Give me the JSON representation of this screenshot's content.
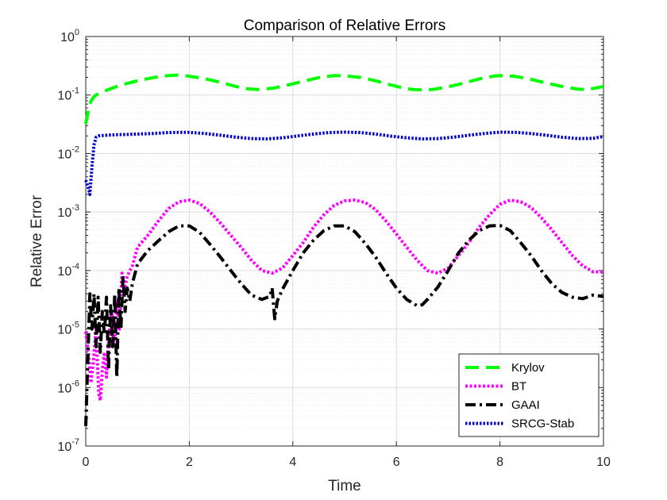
{
  "chart_data": {
    "type": "line",
    "title": "Comparison of Relative Errors",
    "xlabel": "Time",
    "ylabel": "Relative Error",
    "xlim": [
      0,
      10
    ],
    "ylim_exponent": [
      -7,
      0
    ],
    "yscale": "log",
    "grid": true,
    "legend_position": "bottom-right",
    "x_ticks": [
      {
        "value": 0,
        "label": "0"
      },
      {
        "value": 2,
        "label": "2"
      },
      {
        "value": 4,
        "label": "4"
      },
      {
        "value": 6,
        "label": "6"
      },
      {
        "value": 8,
        "label": "8"
      },
      {
        "value": 10,
        "label": "10"
      }
    ],
    "y_ticks": [
      {
        "exponent": 0,
        "base": "10",
        "exp": "0"
      },
      {
        "exponent": -1,
        "base": "10",
        "exp": "-1"
      },
      {
        "exponent": -2,
        "base": "10",
        "exp": "-2"
      },
      {
        "exponent": -3,
        "base": "10",
        "exp": "-3"
      },
      {
        "exponent": -4,
        "base": "10",
        "exp": "-4"
      },
      {
        "exponent": -5,
        "base": "10",
        "exp": "-5"
      },
      {
        "exponent": -6,
        "base": "10",
        "exp": "-6"
      },
      {
        "exponent": -7,
        "base": "10",
        "exp": "-7"
      }
    ],
    "series": [
      {
        "name": "Krylov",
        "color": "#00ff00",
        "dash": "17,9",
        "width": 4,
        "x": [
          0,
          0.03,
          0.06,
          0.1,
          0.15,
          0.2,
          0.3,
          0.45,
          0.6,
          0.8,
          1.0,
          1.3,
          1.6,
          1.8,
          2.0,
          2.3,
          2.6,
          2.9,
          3.1,
          3.3,
          3.6,
          3.9,
          4.2,
          4.5,
          4.8,
          5.0,
          5.3,
          5.6,
          5.9,
          6.2,
          6.4,
          6.7,
          7.0,
          7.3,
          7.6,
          7.9,
          8.0,
          8.3,
          8.6,
          8.9,
          9.2,
          9.5,
          9.7,
          10.0
        ],
        "y": [
          0.032,
          0.045,
          0.06,
          0.078,
          0.092,
          0.1,
          0.112,
          0.125,
          0.14,
          0.158,
          0.175,
          0.198,
          0.215,
          0.22,
          0.21,
          0.19,
          0.165,
          0.14,
          0.128,
          0.124,
          0.13,
          0.148,
          0.172,
          0.198,
          0.215,
          0.214,
          0.2,
          0.175,
          0.148,
          0.128,
          0.122,
          0.124,
          0.138,
          0.16,
          0.188,
          0.212,
          0.215,
          0.208,
          0.185,
          0.16,
          0.14,
          0.126,
          0.124,
          0.14
        ]
      },
      {
        "name": "BT",
        "color": "#ff00ff",
        "dash": "3,2.5",
        "width": 4,
        "x": [
          0,
          0.05,
          0.1,
          0.15,
          0.2,
          0.25,
          0.28,
          0.32,
          0.36,
          0.4,
          0.45,
          0.5,
          0.55,
          0.6,
          0.65,
          0.7,
          0.75,
          0.8,
          0.9,
          1.0,
          1.2,
          1.4,
          1.6,
          1.8,
          2.0,
          2.2,
          2.4,
          2.6,
          2.8,
          3.0,
          3.2,
          3.4,
          3.6,
          3.8,
          4.0,
          4.2,
          4.4,
          4.6,
          4.8,
          5.0,
          5.2,
          5.4,
          5.6,
          5.8,
          6.0,
          6.2,
          6.4,
          6.6,
          6.8,
          7.0,
          7.2,
          7.4,
          7.6,
          7.8,
          8.0,
          8.2,
          8.4,
          8.6,
          8.8,
          9.0,
          9.2,
          9.4,
          9.6,
          9.8,
          10.0
        ],
        "y": [
          9e-06,
          4e-06,
          1.2e-06,
          3e-06,
          1e-05,
          8e-07,
          6e-07,
          2e-06,
          4e-06,
          1.5e-06,
          8e-06,
          2e-05,
          5e-06,
          3e-05,
          1e-05,
          9e-05,
          5e-05,
          8e-05,
          0.00012,
          0.00025,
          0.0004,
          0.0007,
          0.00115,
          0.0015,
          0.0016,
          0.0014,
          0.001,
          0.00065,
          0.0004,
          0.00025,
          0.00015,
          0.0001,
          9e-05,
          0.00011,
          0.00018,
          0.0003,
          0.00055,
          0.0009,
          0.0013,
          0.00155,
          0.0016,
          0.00145,
          0.0011,
          0.0007,
          0.00042,
          0.00025,
          0.00015,
          0.0001,
          9e-05,
          0.00011,
          0.00018,
          0.0003,
          0.00055,
          0.0009,
          0.00135,
          0.0016,
          0.0015,
          0.0012,
          0.0008,
          0.0005,
          0.0003,
          0.00018,
          0.00012,
          9.5e-05,
          9.5e-05
        ]
      },
      {
        "name": "GAAI",
        "color": "#000000",
        "dash": "13,5,3,5",
        "width": 4,
        "x": [
          0,
          0.04,
          0.08,
          0.12,
          0.16,
          0.2,
          0.24,
          0.28,
          0.32,
          0.36,
          0.4,
          0.44,
          0.48,
          0.52,
          0.56,
          0.6,
          0.64,
          0.68,
          0.72,
          0.76,
          0.8,
          0.85,
          0.9,
          1.0,
          1.2,
          1.4,
          1.6,
          1.8,
          2.0,
          2.2,
          2.4,
          2.6,
          2.8,
          3.0,
          3.2,
          3.4,
          3.55,
          3.6,
          3.65,
          3.7,
          3.8,
          4.0,
          4.2,
          4.4,
          4.6,
          4.8,
          5.0,
          5.2,
          5.4,
          5.6,
          5.8,
          6.0,
          6.2,
          6.4,
          6.5,
          6.6,
          6.8,
          7.0,
          7.2,
          7.4,
          7.6,
          7.8,
          8.0,
          8.2,
          8.4,
          8.6,
          8.8,
          9.0,
          9.2,
          9.4,
          9.6,
          9.8,
          10.0
        ],
        "y": [
          2.2e-07,
          3e-06,
          4e-05,
          1e-05,
          4e-05,
          5e-06,
          3.5e-05,
          4e-06,
          2e-05,
          8e-06,
          3.5e-05,
          2e-06,
          2.5e-05,
          5e-06,
          4e-05,
          1.5e-06,
          5e-05,
          1e-05,
          8e-05,
          2e-05,
          5e-05,
          3e-05,
          6e-05,
          0.00013,
          0.00022,
          0.00032,
          0.00046,
          0.00058,
          0.00058,
          0.00045,
          0.00028,
          0.00017,
          0.0001,
          6e-05,
          3.8e-05,
          3.2e-05,
          3.6e-05,
          5e-05,
          1.5e-05,
          3e-05,
          4.8e-05,
          0.0001,
          0.0002,
          0.00033,
          0.00048,
          0.00058,
          0.00058,
          0.00046,
          0.00029,
          0.00017,
          9e-05,
          5e-05,
          3.2e-05,
          2.5e-05,
          2.6e-05,
          3.2e-05,
          5.2e-05,
          0.0001,
          0.0002,
          0.00033,
          0.00048,
          0.00058,
          0.00059,
          0.00048,
          0.0003,
          0.00018,
          0.0001,
          6e-05,
          4.2e-05,
          3.5e-05,
          3.3e-05,
          3.8e-05,
          3.6e-05
        ]
      },
      {
        "name": "SRCG-Stab",
        "color": "#0000cc",
        "dash": "2.5,2",
        "width": 4,
        "x": [
          0,
          0.04,
          0.08,
          0.12,
          0.16,
          0.2,
          0.25,
          0.4,
          0.6,
          0.8,
          1.0,
          1.3,
          1.6,
          1.8,
          2.0,
          2.3,
          2.6,
          2.9,
          3.2,
          3.5,
          3.8,
          4.1,
          4.4,
          4.7,
          5.0,
          5.3,
          5.6,
          5.9,
          6.2,
          6.5,
          6.8,
          7.1,
          7.4,
          7.7,
          8.0,
          8.3,
          8.6,
          8.9,
          9.2,
          9.5,
          9.8,
          10.0
        ],
        "y": [
          0.0035,
          0.0028,
          0.002,
          0.006,
          0.014,
          0.019,
          0.02,
          0.0205,
          0.021,
          0.0212,
          0.0215,
          0.022,
          0.0228,
          0.023,
          0.023,
          0.022,
          0.0205,
          0.019,
          0.018,
          0.0178,
          0.0185,
          0.02,
          0.0215,
          0.0228,
          0.0232,
          0.0228,
          0.0215,
          0.0198,
          0.0185,
          0.0178,
          0.018,
          0.019,
          0.0205,
          0.022,
          0.0232,
          0.023,
          0.022,
          0.0205,
          0.019,
          0.018,
          0.0182,
          0.0195
        ]
      }
    ]
  }
}
